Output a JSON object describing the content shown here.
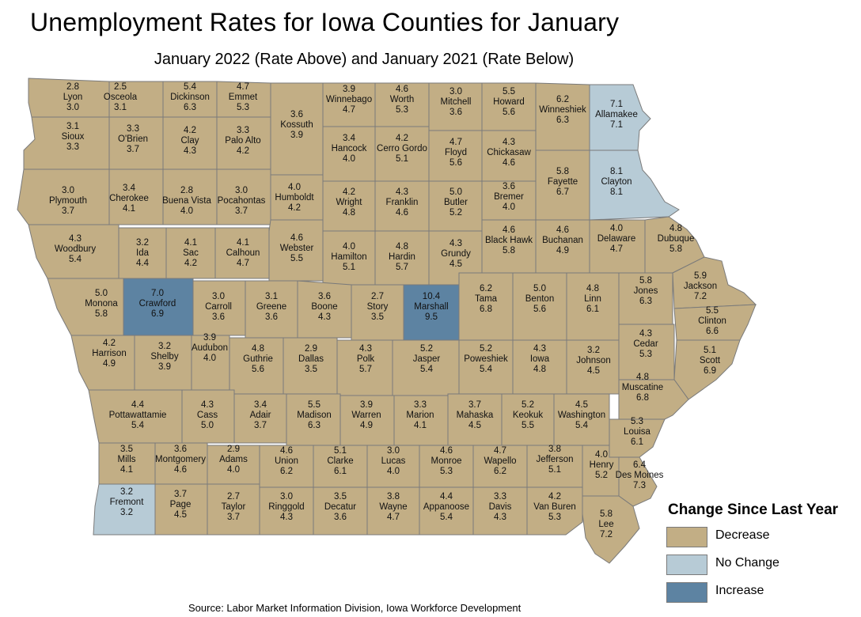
{
  "title": "Unemployment Rates for Iowa Counties for January",
  "subtitle": "January 2022 (Rate Above) and January 2021 (Rate Below)",
  "source": "Source: Labor Market Information Division, Iowa Workforce Development",
  "legend": {
    "title": "Change Since Last Year",
    "items": [
      {
        "key": "decrease",
        "label": "Decrease",
        "color": "#c2ae85"
      },
      {
        "key": "nochange",
        "label": "No Change",
        "color": "#b7cbd6"
      },
      {
        "key": "increase",
        "label": "Increase",
        "color": "#5d83a2"
      }
    ]
  },
  "counties": [
    {
      "name": "Lyon",
      "rate_2022": "2.8",
      "rate_2021": "3.0",
      "change": "decrease"
    },
    {
      "name": "Osceola",
      "rate_2022": "2.5",
      "rate_2021": "3.1",
      "change": "decrease"
    },
    {
      "name": "Dickinson",
      "rate_2022": "5.4",
      "rate_2021": "6.3",
      "change": "decrease"
    },
    {
      "name": "Emmet",
      "rate_2022": "4.7",
      "rate_2021": "5.3",
      "change": "decrease"
    },
    {
      "name": "Kossuth",
      "rate_2022": "3.6",
      "rate_2021": "3.9",
      "change": "decrease"
    },
    {
      "name": "Winnebago",
      "rate_2022": "3.9",
      "rate_2021": "4.7",
      "change": "decrease"
    },
    {
      "name": "Worth",
      "rate_2022": "4.6",
      "rate_2021": "5.3",
      "change": "decrease"
    },
    {
      "name": "Mitchell",
      "rate_2022": "3.0",
      "rate_2021": "3.6",
      "change": "decrease"
    },
    {
      "name": "Howard",
      "rate_2022": "5.5",
      "rate_2021": "5.6",
      "change": "decrease"
    },
    {
      "name": "Winneshiek",
      "rate_2022": "6.2",
      "rate_2021": "6.3",
      "change": "decrease"
    },
    {
      "name": "Allamakee",
      "rate_2022": "7.1",
      "rate_2021": "7.1",
      "change": "nochange"
    },
    {
      "name": "Sioux",
      "rate_2022": "3.1",
      "rate_2021": "3.3",
      "change": "decrease"
    },
    {
      "name": "O'Brien",
      "rate_2022": "3.3",
      "rate_2021": "3.7",
      "change": "decrease"
    },
    {
      "name": "Clay",
      "rate_2022": "4.2",
      "rate_2021": "4.3",
      "change": "decrease"
    },
    {
      "name": "Palo Alto",
      "rate_2022": "3.3",
      "rate_2021": "4.2",
      "change": "decrease"
    },
    {
      "name": "Hancock",
      "rate_2022": "3.4",
      "rate_2021": "4.0",
      "change": "decrease"
    },
    {
      "name": "Cerro Gordo",
      "rate_2022": "4.2",
      "rate_2021": "5.1",
      "change": "decrease"
    },
    {
      "name": "Floyd",
      "rate_2022": "4.7",
      "rate_2021": "5.6",
      "change": "decrease"
    },
    {
      "name": "Chickasaw",
      "rate_2022": "4.3",
      "rate_2021": "4.6",
      "change": "decrease"
    },
    {
      "name": "Fayette",
      "rate_2022": "5.8",
      "rate_2021": "6.7",
      "change": "decrease"
    },
    {
      "name": "Clayton",
      "rate_2022": "8.1",
      "rate_2021": "8.1",
      "change": "nochange"
    },
    {
      "name": "Plymouth",
      "rate_2022": "3.0",
      "rate_2021": "3.7",
      "change": "decrease"
    },
    {
      "name": "Cherokee",
      "rate_2022": "3.4",
      "rate_2021": "4.1",
      "change": "decrease"
    },
    {
      "name": "Buena Vista",
      "rate_2022": "2.8",
      "rate_2021": "4.0",
      "change": "decrease"
    },
    {
      "name": "Pocahontas",
      "rate_2022": "3.0",
      "rate_2021": "3.7",
      "change": "decrease"
    },
    {
      "name": "Humboldt",
      "rate_2022": "4.0",
      "rate_2021": "4.2",
      "change": "decrease"
    },
    {
      "name": "Wright",
      "rate_2022": "4.2",
      "rate_2021": "4.8",
      "change": "decrease"
    },
    {
      "name": "Franklin",
      "rate_2022": "4.3",
      "rate_2021": "4.6",
      "change": "decrease"
    },
    {
      "name": "Butler",
      "rate_2022": "5.0",
      "rate_2021": "5.2",
      "change": "decrease"
    },
    {
      "name": "Bremer",
      "rate_2022": "3.6",
      "rate_2021": "4.0",
      "change": "decrease"
    },
    {
      "name": "Woodbury",
      "rate_2022": "4.3",
      "rate_2021": "5.4",
      "change": "decrease"
    },
    {
      "name": "Ida",
      "rate_2022": "3.2",
      "rate_2021": "4.4",
      "change": "decrease"
    },
    {
      "name": "Sac",
      "rate_2022": "4.1",
      "rate_2021": "4.2",
      "change": "decrease"
    },
    {
      "name": "Calhoun",
      "rate_2022": "4.1",
      "rate_2021": "4.7",
      "change": "decrease"
    },
    {
      "name": "Webster",
      "rate_2022": "4.6",
      "rate_2021": "5.5",
      "change": "decrease"
    },
    {
      "name": "Hamilton",
      "rate_2022": "4.0",
      "rate_2021": "5.1",
      "change": "decrease"
    },
    {
      "name": "Hardin",
      "rate_2022": "4.8",
      "rate_2021": "5.7",
      "change": "decrease"
    },
    {
      "name": "Grundy",
      "rate_2022": "4.3",
      "rate_2021": "4.5",
      "change": "decrease"
    },
    {
      "name": "Black Hawk",
      "rate_2022": "4.6",
      "rate_2021": "5.8",
      "change": "decrease"
    },
    {
      "name": "Buchanan",
      "rate_2022": "4.6",
      "rate_2021": "4.9",
      "change": "decrease"
    },
    {
      "name": "Delaware",
      "rate_2022": "4.0",
      "rate_2021": "4.7",
      "change": "decrease"
    },
    {
      "name": "Dubuque",
      "rate_2022": "4.8",
      "rate_2021": "5.8",
      "change": "decrease"
    },
    {
      "name": "Monona",
      "rate_2022": "5.0",
      "rate_2021": "5.8",
      "change": "decrease"
    },
    {
      "name": "Crawford",
      "rate_2022": "7.0",
      "rate_2021": "6.9",
      "change": "increase"
    },
    {
      "name": "Carroll",
      "rate_2022": "3.0",
      "rate_2021": "3.6",
      "change": "decrease"
    },
    {
      "name": "Greene",
      "rate_2022": "3.1",
      "rate_2021": "3.6",
      "change": "decrease"
    },
    {
      "name": "Boone",
      "rate_2022": "3.6",
      "rate_2021": "4.3",
      "change": "decrease"
    },
    {
      "name": "Story",
      "rate_2022": "2.7",
      "rate_2021": "3.5",
      "change": "decrease"
    },
    {
      "name": "Marshall",
      "rate_2022": "10.4",
      "rate_2021": "9.5",
      "change": "increase"
    },
    {
      "name": "Tama",
      "rate_2022": "6.2",
      "rate_2021": "6.8",
      "change": "decrease"
    },
    {
      "name": "Benton",
      "rate_2022": "5.0",
      "rate_2021": "5.6",
      "change": "decrease"
    },
    {
      "name": "Linn",
      "rate_2022": "4.8",
      "rate_2021": "6.1",
      "change": "decrease"
    },
    {
      "name": "Jones",
      "rate_2022": "5.8",
      "rate_2021": "6.3",
      "change": "decrease"
    },
    {
      "name": "Jackson",
      "rate_2022": "5.9",
      "rate_2021": "7.2",
      "change": "decrease"
    },
    {
      "name": "Harrison",
      "rate_2022": "4.2",
      "rate_2021": "4.9",
      "change": "decrease"
    },
    {
      "name": "Shelby",
      "rate_2022": "3.2",
      "rate_2021": "3.9",
      "change": "decrease"
    },
    {
      "name": "Audubon",
      "rate_2022": "3.9",
      "rate_2021": "4.0",
      "change": "decrease"
    },
    {
      "name": "Guthrie",
      "rate_2022": "4.8",
      "rate_2021": "5.6",
      "change": "decrease"
    },
    {
      "name": "Dallas",
      "rate_2022": "2.9",
      "rate_2021": "3.5",
      "change": "decrease"
    },
    {
      "name": "Polk",
      "rate_2022": "4.3",
      "rate_2021": "5.7",
      "change": "decrease"
    },
    {
      "name": "Jasper",
      "rate_2022": "5.2",
      "rate_2021": "5.4",
      "change": "decrease"
    },
    {
      "name": "Poweshiek",
      "rate_2022": "5.2",
      "rate_2021": "5.4",
      "change": "decrease"
    },
    {
      "name": "Iowa",
      "rate_2022": "4.3",
      "rate_2021": "4.8",
      "change": "decrease"
    },
    {
      "name": "Johnson",
      "rate_2022": "3.2",
      "rate_2021": "4.5",
      "change": "decrease"
    },
    {
      "name": "Cedar",
      "rate_2022": "4.3",
      "rate_2021": "5.3",
      "change": "decrease"
    },
    {
      "name": "Clinton",
      "rate_2022": "5.5",
      "rate_2021": "6.6",
      "change": "decrease"
    },
    {
      "name": "Scott",
      "rate_2022": "5.1",
      "rate_2021": "6.9",
      "change": "decrease"
    },
    {
      "name": "Pottawattamie",
      "rate_2022": "4.4",
      "rate_2021": "5.4",
      "change": "decrease"
    },
    {
      "name": "Cass",
      "rate_2022": "4.3",
      "rate_2021": "5.0",
      "change": "decrease"
    },
    {
      "name": "Adair",
      "rate_2022": "3.4",
      "rate_2021": "3.7",
      "change": "decrease"
    },
    {
      "name": "Madison",
      "rate_2022": "5.5",
      "rate_2021": "6.3",
      "change": "decrease"
    },
    {
      "name": "Warren",
      "rate_2022": "3.9",
      "rate_2021": "4.9",
      "change": "decrease"
    },
    {
      "name": "Marion",
      "rate_2022": "3.3",
      "rate_2021": "4.1",
      "change": "decrease"
    },
    {
      "name": "Mahaska",
      "rate_2022": "3.7",
      "rate_2021": "4.5",
      "change": "decrease"
    },
    {
      "name": "Keokuk",
      "rate_2022": "5.2",
      "rate_2021": "5.5",
      "change": "decrease"
    },
    {
      "name": "Washington",
      "rate_2022": "4.5",
      "rate_2021": "5.4",
      "change": "decrease"
    },
    {
      "name": "Muscatine",
      "rate_2022": "4.8",
      "rate_2021": "6.8",
      "change": "decrease"
    },
    {
      "name": "Louisa",
      "rate_2022": "5.3",
      "rate_2021": "6.1",
      "change": "decrease"
    },
    {
      "name": "Mills",
      "rate_2022": "3.5",
      "rate_2021": "4.1",
      "change": "decrease"
    },
    {
      "name": "Montgomery",
      "rate_2022": "3.6",
      "rate_2021": "4.6",
      "change": "decrease"
    },
    {
      "name": "Adams",
      "rate_2022": "2.9",
      "rate_2021": "4.0",
      "change": "decrease"
    },
    {
      "name": "Union",
      "rate_2022": "4.6",
      "rate_2021": "6.2",
      "change": "decrease"
    },
    {
      "name": "Clarke",
      "rate_2022": "5.1",
      "rate_2021": "6.1",
      "change": "decrease"
    },
    {
      "name": "Lucas",
      "rate_2022": "3.0",
      "rate_2021": "4.0",
      "change": "decrease"
    },
    {
      "name": "Monroe",
      "rate_2022": "4.6",
      "rate_2021": "5.3",
      "change": "decrease"
    },
    {
      "name": "Wapello",
      "rate_2022": "4.7",
      "rate_2021": "6.2",
      "change": "decrease"
    },
    {
      "name": "Jefferson",
      "rate_2022": "3.8",
      "rate_2021": "5.1",
      "change": "decrease"
    },
    {
      "name": "Henry",
      "rate_2022": "4.0",
      "rate_2021": "5.2",
      "change": "decrease"
    },
    {
      "name": "Des Moines",
      "rate_2022": "6.4",
      "rate_2021": "7.3",
      "change": "decrease"
    },
    {
      "name": "Fremont",
      "rate_2022": "3.2",
      "rate_2021": "3.2",
      "change": "nochange"
    },
    {
      "name": "Page",
      "rate_2022": "3.7",
      "rate_2021": "4.5",
      "change": "decrease"
    },
    {
      "name": "Taylor",
      "rate_2022": "2.7",
      "rate_2021": "3.7",
      "change": "decrease"
    },
    {
      "name": "Ringgold",
      "rate_2022": "3.0",
      "rate_2021": "4.3",
      "change": "decrease"
    },
    {
      "name": "Decatur",
      "rate_2022": "3.5",
      "rate_2021": "3.6",
      "change": "decrease"
    },
    {
      "name": "Wayne",
      "rate_2022": "3.8",
      "rate_2021": "4.7",
      "change": "decrease"
    },
    {
      "name": "Appanoose",
      "rate_2022": "4.4",
      "rate_2021": "5.4",
      "change": "decrease"
    },
    {
      "name": "Davis",
      "rate_2022": "3.3",
      "rate_2021": "4.3",
      "change": "decrease"
    },
    {
      "name": "Van Buren",
      "rate_2022": "4.2",
      "rate_2021": "5.3",
      "change": "decrease"
    },
    {
      "name": "Lee",
      "rate_2022": "5.8",
      "rate_2021": "7.2",
      "change": "decrease"
    }
  ]
}
